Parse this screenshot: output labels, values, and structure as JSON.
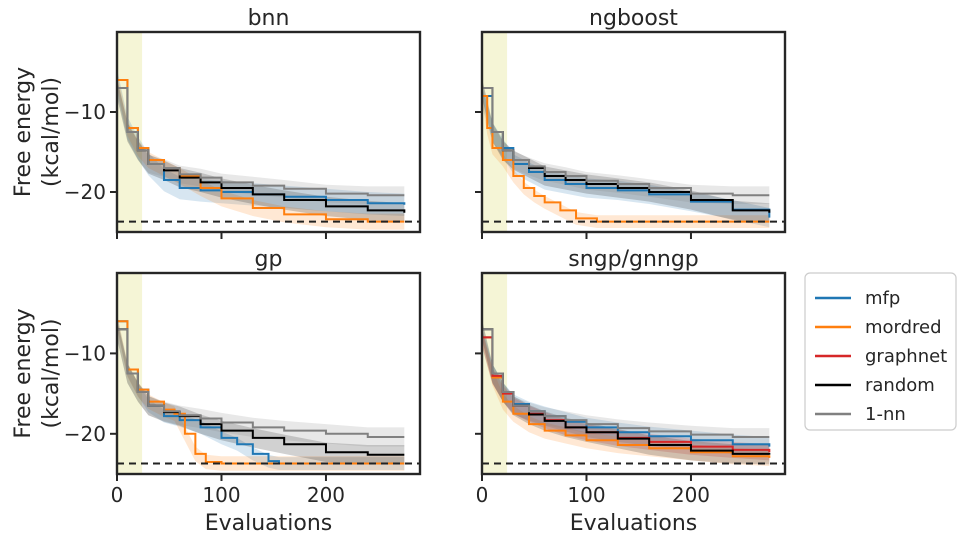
{
  "chart_data": {
    "type": "line",
    "xlabel": "Evaluations",
    "ylabel_line1": "Free energy",
    "ylabel_line2": "(kcal/mol)",
    "xlim": [
      0,
      290
    ],
    "ylim": [
      -25,
      0
    ],
    "xticks": [
      0,
      100,
      200
    ],
    "xtick_labels": [
      "0",
      "100",
      "200"
    ],
    "yticks": [
      -10,
      -20
    ],
    "ytick_labels": [
      "−10",
      "−20"
    ],
    "reference_line": {
      "y": -23.7,
      "style": "dashed",
      "color": "#222222"
    },
    "initial_region": {
      "x_start": 0,
      "x_end": 24,
      "color": "#f5f5d6"
    },
    "colors": {
      "mfp": "#1f77b4",
      "mordred": "#ff7f0e",
      "graphnet": "#d62728",
      "random": "#000000",
      "1-nn": "#808080"
    },
    "legend": {
      "position": "right",
      "entries": [
        {
          "name": "mfp",
          "color": "#1f77b4"
        },
        {
          "name": "mordred",
          "color": "#ff7f0e"
        },
        {
          "name": "graphnet",
          "color": "#d62728"
        },
        {
          "name": "random",
          "color": "#000000"
        },
        {
          "name": "1-nn",
          "color": "#808080"
        }
      ]
    },
    "panels": [
      {
        "title": "bnn",
        "series": [
          {
            "name": "mfp",
            "x": [
              0,
              10,
              20,
              30,
              45,
              60,
              80,
              100,
              130,
              160,
              200,
              240,
              275
            ],
            "y": [
              -6,
              -12,
              -14.5,
              -16.5,
              -18.5,
              -19.5,
              -19.8,
              -20.0,
              -20.3,
              -20.6,
              -21.0,
              -21.4,
              -21.6
            ],
            "band": 1.4
          },
          {
            "name": "mordred",
            "x": [
              0,
              10,
              20,
              30,
              45,
              60,
              80,
              100,
              130,
              160,
              200,
              240,
              275
            ],
            "y": [
              -6,
              -12,
              -14.5,
              -16,
              -17,
              -18,
              -19.5,
              -20.8,
              -22,
              -22.8,
              -23.4,
              -23.7,
              -23.7
            ],
            "band": 1.0
          },
          {
            "name": "random",
            "x": [
              0,
              10,
              20,
              30,
              45,
              60,
              80,
              100,
              130,
              160,
              200,
              240,
              275
            ],
            "y": [
              -7,
              -12.5,
              -14.8,
              -16.5,
              -17.3,
              -18.2,
              -18.8,
              -19.5,
              -20.3,
              -21.0,
              -21.8,
              -22.3,
              -22.6
            ],
            "band": 1.2
          },
          {
            "name": "1-nn",
            "x": [
              0,
              10,
              20,
              30,
              45,
              60,
              80,
              100,
              130,
              160,
              200,
              240,
              275
            ],
            "y": [
              -7,
              -12.5,
              -14.8,
              -16.5,
              -17.0,
              -17.8,
              -18.2,
              -18.8,
              -19.2,
              -19.6,
              -20.2,
              -20.4,
              -20.4
            ],
            "band": 1.1
          }
        ]
      },
      {
        "title": "ngboost",
        "series": [
          {
            "name": "mfp",
            "x": [
              0,
              10,
              20,
              30,
              45,
              60,
              80,
              100,
              130,
              160,
              200,
              240,
              275
            ],
            "y": [
              -8,
              -12.5,
              -14.5,
              -16.5,
              -17.5,
              -18.5,
              -19.0,
              -19.5,
              -19.8,
              -20.3,
              -21.2,
              -22.2,
              -23.2
            ],
            "band": 1.2
          },
          {
            "name": "mordred",
            "x": [
              0,
              5,
              10,
              20,
              30,
              40,
              50,
              60,
              75,
              90,
              110,
              130,
              160,
              200,
              240,
              275
            ],
            "y": [
              -8,
              -12,
              -14.5,
              -16,
              -18,
              -19.5,
              -20.5,
              -21.3,
              -22.3,
              -23.3,
              -23.7,
              -23.7,
              -23.7,
              -23.7,
              -23.7,
              -23.7
            ],
            "band": 0.8
          },
          {
            "name": "random",
            "x": [
              0,
              10,
              20,
              30,
              45,
              60,
              80,
              100,
              130,
              160,
              200,
              240,
              275
            ],
            "y": [
              -7,
              -12.5,
              -14.8,
              -16,
              -17.0,
              -18.0,
              -18.5,
              -19.0,
              -19.5,
              -20.0,
              -21.0,
              -22.3,
              -22.6
            ],
            "band": 1.2
          },
          {
            "name": "1-nn",
            "x": [
              0,
              10,
              20,
              30,
              45,
              60,
              80,
              100,
              130,
              160,
              200,
              240,
              275
            ],
            "y": [
              -7,
              -12.5,
              -14.8,
              -16,
              -16.8,
              -17.5,
              -18.0,
              -18.6,
              -19.0,
              -19.5,
              -20.2,
              -20.4,
              -20.4
            ],
            "band": 1.1
          }
        ]
      },
      {
        "title": "gp",
        "series": [
          {
            "name": "mfp",
            "x": [
              0,
              10,
              20,
              30,
              45,
              60,
              80,
              100,
              115,
              130,
              145,
              155,
              170,
              200,
              240,
              275
            ],
            "y": [
              -6,
              -12,
              -14.5,
              -16.5,
              -17.8,
              -18.3,
              -19.2,
              -20.5,
              -21.3,
              -22.5,
              -23.4,
              -23.7,
              -23.7,
              -23.7,
              -23.7,
              -23.7
            ],
            "band": 0.8
          },
          {
            "name": "mordred",
            "x": [
              0,
              10,
              20,
              30,
              45,
              55,
              65,
              75,
              85,
              100,
              120,
              160,
              200,
              240,
              275
            ],
            "y": [
              -6,
              -12,
              -14.5,
              -16,
              -17,
              -17.5,
              -20,
              -22.5,
              -23.5,
              -23.7,
              -23.7,
              -23.7,
              -23.7,
              -23.7,
              -23.7
            ],
            "band": 0.9
          },
          {
            "name": "random",
            "x": [
              0,
              10,
              20,
              30,
              45,
              60,
              80,
              100,
              130,
              160,
              200,
              240,
              275
            ],
            "y": [
              -7,
              -12.5,
              -14.8,
              -16.5,
              -17.3,
              -17.8,
              -18.8,
              -19.6,
              -20.5,
              -21.3,
              -22.3,
              -22.6,
              -22.6
            ],
            "band": 1.2
          },
          {
            "name": "1-nn",
            "x": [
              0,
              10,
              20,
              30,
              45,
              60,
              80,
              100,
              130,
              160,
              200,
              240,
              275
            ],
            "y": [
              -7,
              -12.5,
              -14.8,
              -16.5,
              -17.2,
              -17.7,
              -18.1,
              -18.6,
              -19.2,
              -19.6,
              -20.0,
              -20.4,
              -20.4
            ],
            "band": 1.2
          }
        ]
      },
      {
        "title": "sngp/gnngp",
        "series": [
          {
            "name": "mfp",
            "x": [
              0,
              10,
              20,
              30,
              45,
              60,
              80,
              100,
              130,
              160,
              200,
              240,
              275
            ],
            "y": [
              -8,
              -12.5,
              -14.8,
              -16.3,
              -17.2,
              -17.8,
              -18.5,
              -19.2,
              -19.8,
              -20.3,
              -20.8,
              -21.3,
              -21.6
            ],
            "band": 1.2
          },
          {
            "name": "mordred",
            "x": [
              0,
              10,
              20,
              30,
              45,
              60,
              80,
              100,
              130,
              160,
              200,
              240,
              275
            ],
            "y": [
              -8,
              -13,
              -16,
              -17.5,
              -18.8,
              -19.6,
              -20.2,
              -20.8,
              -21.4,
              -21.8,
              -22.3,
              -22.8,
              -23.0
            ],
            "band": 1.0
          },
          {
            "name": "graphnet",
            "x": [
              0,
              10,
              20,
              30,
              45,
              60,
              80,
              100,
              130,
              160,
              200,
              240,
              275
            ],
            "y": [
              -8,
              -12.8,
              -15,
              -16.5,
              -17.5,
              -18.3,
              -19.2,
              -19.8,
              -20.5,
              -21.0,
              -21.6,
              -22.0,
              -22.3
            ],
            "band": 1.0
          },
          {
            "name": "random",
            "x": [
              0,
              10,
              20,
              30,
              45,
              60,
              80,
              100,
              130,
              160,
              200,
              240,
              275
            ],
            "y": [
              -7,
              -12.5,
              -14.8,
              -16.5,
              -17.6,
              -18.4,
              -19.2,
              -19.8,
              -20.6,
              -21.4,
              -22.1,
              -22.5,
              -22.6
            ],
            "band": 1.2
          },
          {
            "name": "1-nn",
            "x": [
              0,
              10,
              20,
              30,
              45,
              60,
              80,
              100,
              130,
              160,
              200,
              240,
              275
            ],
            "y": [
              -7,
              -12.5,
              -14.8,
              -16.5,
              -17.2,
              -17.8,
              -18.3,
              -18.8,
              -19.3,
              -19.7,
              -20.1,
              -20.4,
              -20.4
            ],
            "band": 1.1
          }
        ]
      }
    ]
  }
}
